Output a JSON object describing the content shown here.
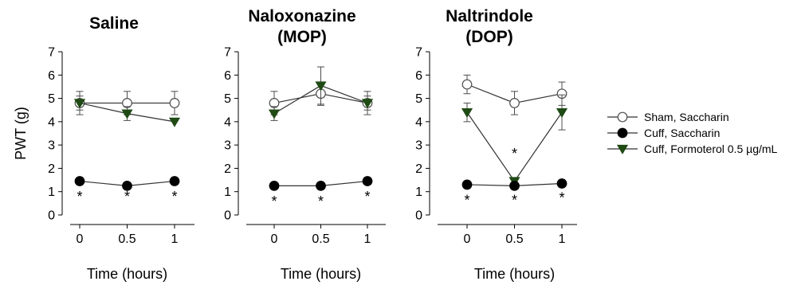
{
  "chart_data": [
    {
      "type": "line",
      "title": [
        "Saline"
      ],
      "xlabel": "Time (hours)",
      "ylabel": "PWT (g)",
      "x": [
        0,
        0.5,
        1
      ],
      "x_tick_labels": [
        "0",
        "0.5",
        "1"
      ],
      "ylim": [
        0,
        7
      ],
      "y_ticks": [
        0,
        1,
        2,
        3,
        4,
        5,
        6,
        7
      ],
      "series": [
        {
          "key": "sham",
          "values": [
            4.8,
            4.8,
            4.8
          ],
          "err": [
            0.5,
            0.5,
            0.5
          ]
        },
        {
          "key": "cuff_sacch",
          "values": [
            1.45,
            1.25,
            1.45
          ],
          "err": [
            0,
            0,
            0
          ]
        },
        {
          "key": "formoterol",
          "values": [
            4.8,
            4.35,
            4.0
          ],
          "err": [
            0.3,
            0.3,
            0
          ]
        }
      ],
      "annotations": [
        {
          "text": "*",
          "x": 0,
          "y": 0.85
        },
        {
          "text": "*",
          "x": 0.5,
          "y": 0.85
        },
        {
          "text": "*",
          "x": 1,
          "y": 0.85
        }
      ]
    },
    {
      "type": "line",
      "title": [
        "Naloxonazine",
        "(MOP)"
      ],
      "xlabel": "Time (hours)",
      "ylabel": "",
      "x": [
        0,
        0.5,
        1
      ],
      "x_tick_labels": [
        "0",
        "0.5",
        "1"
      ],
      "ylim": [
        0,
        7
      ],
      "y_ticks": [
        0,
        1,
        2,
        3,
        4,
        5,
        6,
        7
      ],
      "series": [
        {
          "key": "sham",
          "values": [
            4.8,
            5.2,
            4.8
          ],
          "err": [
            0.5,
            0.5,
            0.5
          ]
        },
        {
          "key": "cuff_sacch",
          "values": [
            1.25,
            1.25,
            1.45
          ],
          "err": [
            0,
            0,
            0
          ]
        },
        {
          "key": "formoterol",
          "values": [
            4.35,
            5.55,
            4.8
          ],
          "err": [
            0.3,
            0.8,
            0.3
          ]
        }
      ],
      "annotations": [
        {
          "text": "*",
          "x": 0,
          "y": 0.65
        },
        {
          "text": "*",
          "x": 0.5,
          "y": 0.65
        },
        {
          "text": "*",
          "x": 1,
          "y": 0.85
        }
      ]
    },
    {
      "type": "line",
      "title": [
        "Naltrindole",
        "(DOP)"
      ],
      "xlabel": "Time (hours)",
      "ylabel": "",
      "x": [
        0,
        0.5,
        1
      ],
      "x_tick_labels": [
        "0",
        "0.5",
        "1"
      ],
      "ylim": [
        0,
        7
      ],
      "y_ticks": [
        0,
        1,
        2,
        3,
        4,
        5,
        6,
        7
      ],
      "series": [
        {
          "key": "sham",
          "values": [
            5.6,
            4.8,
            5.2
          ],
          "err": [
            0.4,
            0.5,
            0.5
          ]
        },
        {
          "key": "cuff_sacch",
          "values": [
            1.3,
            1.25,
            1.35
          ],
          "err": [
            0,
            0,
            0
          ]
        },
        {
          "key": "formoterol",
          "values": [
            4.4,
            1.45,
            4.4
          ],
          "err": [
            0.4,
            0.1,
            0.75
          ]
        }
      ],
      "annotations": [
        {
          "text": "*",
          "x": 0,
          "y": 0.7
        },
        {
          "text": "*",
          "x": 0.5,
          "y": 0.7
        },
        {
          "text": "*",
          "x": 0.5,
          "y": 2.7
        },
        {
          "text": "*",
          "x": 1,
          "y": 0.8
        }
      ]
    }
  ],
  "legend": {
    "placement": "right",
    "entries": [
      {
        "key": "sham",
        "label": "Sham, Saccharin"
      },
      {
        "key": "cuff_sacch",
        "label": "Cuff, Saccharin"
      },
      {
        "key": "formoterol",
        "label": "Cuff, Formoterol 0.5 µg/mL"
      }
    ]
  },
  "series_styles": {
    "sham": {
      "marker": "circle-open",
      "fill": "#ffffff",
      "stroke": "#4d4d4d"
    },
    "cuff_sacch": {
      "marker": "circle-filled",
      "fill": "#000000",
      "stroke": "#000000"
    },
    "formoterol": {
      "marker": "triangle-down",
      "fill": "#1f4a14",
      "stroke": "#1f4a14"
    }
  },
  "colors": {
    "line": "#333333",
    "axis": "#000000",
    "errorbar": "#4d4d4d"
  }
}
